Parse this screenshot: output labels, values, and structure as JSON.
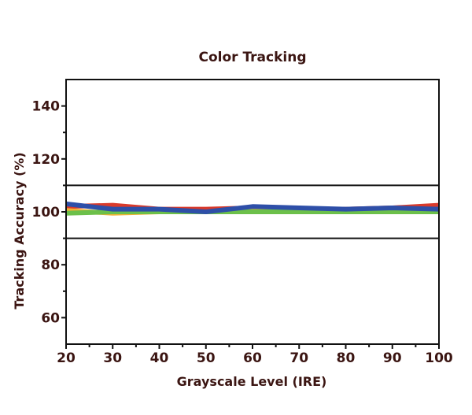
{
  "chart_data": {
    "type": "line",
    "title": "Color Tracking",
    "xlabel": "Grayscale Level (IRE)",
    "ylabel": "Tracking Accuracy (%)",
    "xlim": [
      20,
      100
    ],
    "ylim": [
      50,
      150
    ],
    "x_ticks": [
      20,
      30,
      40,
      50,
      60,
      70,
      80,
      90,
      100
    ],
    "y_ticks": [
      60,
      80,
      100,
      120,
      140
    ],
    "reference_lines": [
      90,
      110
    ],
    "grid": false,
    "legend": "none",
    "x": [
      20,
      30,
      40,
      50,
      60,
      70,
      80,
      90,
      100
    ],
    "series": [
      {
        "color": "#d93a2b",
        "values": [
          102,
          102.5,
          101,
          101,
          101.5,
          101,
          101,
          101.5,
          102.5
        ]
      },
      {
        "color": "#f2b233",
        "values": [
          100.5,
          99.5,
          100,
          100,
          100.5,
          100,
          100,
          100,
          100
        ]
      },
      {
        "color": "#6cc04a",
        "values": [
          99.5,
          100,
          100,
          100,
          100,
          100,
          100,
          100,
          100
        ]
      },
      {
        "color": "#2e4fa8",
        "values": [
          103,
          101,
          101,
          100,
          102,
          101.5,
          101,
          101.5,
          101
        ]
      }
    ]
  }
}
